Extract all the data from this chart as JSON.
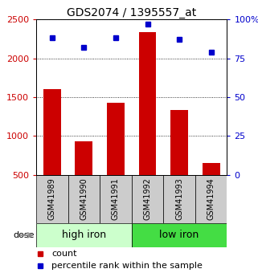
{
  "title": "GDS2074 / 1395557_at",
  "samples": [
    "GSM41989",
    "GSM41990",
    "GSM41991",
    "GSM41992",
    "GSM41993",
    "GSM41994"
  ],
  "counts": [
    1600,
    930,
    1430,
    2340,
    1330,
    650
  ],
  "percentiles": [
    88,
    82,
    88,
    97,
    87,
    79
  ],
  "bar_color": "#cc0000",
  "marker_color": "#0000cc",
  "bar_bottom": 500,
  "ylim_left": [
    500,
    2500
  ],
  "ylim_right": [
    0,
    100
  ],
  "yticks_left": [
    500,
    1000,
    1500,
    2000,
    2500
  ],
  "yticks_right": [
    0,
    25,
    50,
    75,
    100
  ],
  "yticklabels_right": [
    "0",
    "25",
    "50",
    "75",
    "100%"
  ],
  "group1_label": "high iron",
  "group2_label": "low iron",
  "dose_label": "dose",
  "legend_count": "count",
  "legend_percentile": "percentile rank within the sample",
  "bg_plot": "#ffffff",
  "bg_label_high": "#ccffcc",
  "bg_label_low": "#44dd44",
  "bg_sample": "#cccccc",
  "title_fontsize": 10,
  "tick_fontsize": 8,
  "sample_fontsize": 7,
  "label_fontsize": 9,
  "legend_fontsize": 8
}
